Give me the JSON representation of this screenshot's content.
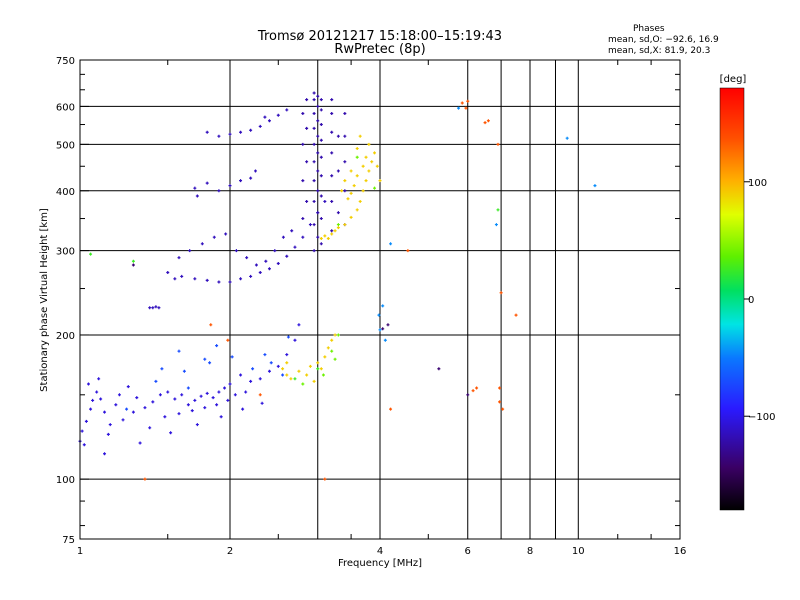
{
  "chart_data": {
    "type": "scatter",
    "title": "Tromsø 20121217 15:18:00–15:19:43",
    "subtitle": "RwPretec (8p)",
    "stats": {
      "heading": "Phases",
      "line_o": "mean, sd,O: −92.6, 16.9",
      "line_x": "mean, sd,X:  81.9, 20.3"
    },
    "xlabel": "Frequency [MHz]",
    "ylabel": "Stationary phase Virtual Height [km]",
    "x_scale": "log",
    "y_scale": "log",
    "xlim": [
      1,
      16
    ],
    "ylim": [
      75,
      750
    ],
    "x_ticks": [
      {
        "value": 1,
        "label": "1"
      },
      {
        "value": 2,
        "label": "2"
      },
      {
        "value": 4,
        "label": "4"
      },
      {
        "value": 6,
        "label": "6"
      },
      {
        "value": 8,
        "label": "8"
      },
      {
        "value": 10,
        "label": "10"
      },
      {
        "value": 16,
        "label": "16"
      }
    ],
    "y_ticks": [
      {
        "value": 75,
        "label": "75"
      },
      {
        "value": 100,
        "label": "100"
      },
      {
        "value": 200,
        "label": "200"
      },
      {
        "value": 300,
        "label": "300"
      },
      {
        "value": 400,
        "label": "400"
      },
      {
        "value": 500,
        "label": "500"
      },
      {
        "value": 600,
        "label": "600"
      },
      {
        "value": 750,
        "label": "750"
      }
    ],
    "grid": true,
    "grid_x": [
      2,
      3,
      4,
      6,
      7,
      8,
      9,
      10
    ],
    "grid_y": [
      100,
      200,
      300,
      400,
      500,
      600
    ],
    "colorbar": {
      "label": "[deg]",
      "range": [
        -180,
        180
      ],
      "ticks": [
        {
          "value": 100,
          "label": "100"
        },
        {
          "value": 0,
          "label": "0"
        },
        {
          "value": -100,
          "label": "−100"
        }
      ]
    },
    "series": [
      {
        "name": "",
        "phase": -105,
        "points": [
          [
            1.0,
            120
          ],
          [
            1.01,
            126
          ],
          [
            1.02,
            118
          ],
          [
            1.03,
            132
          ],
          [
            1.05,
            140
          ],
          [
            1.06,
            146
          ],
          [
            1.08,
            152
          ],
          [
            1.1,
            147
          ],
          [
            1.12,
            138
          ],
          [
            1.15,
            130
          ],
          [
            1.18,
            143
          ],
          [
            1.2,
            150
          ],
          [
            1.25,
            156
          ],
          [
            1.3,
            148
          ],
          [
            1.35,
            141
          ],
          [
            1.4,
            145
          ],
          [
            1.45,
            150
          ],
          [
            1.5,
            152
          ],
          [
            1.55,
            147
          ],
          [
            1.6,
            150
          ],
          [
            1.65,
            143
          ],
          [
            1.7,
            146
          ],
          [
            1.75,
            149
          ],
          [
            1.8,
            151
          ],
          [
            1.85,
            148
          ],
          [
            1.9,
            152
          ],
          [
            1.95,
            155
          ],
          [
            2.0,
            158
          ],
          [
            2.1,
            165
          ],
          [
            2.2,
            160
          ],
          [
            2.3,
            162
          ],
          [
            2.4,
            168
          ],
          [
            2.5,
            172
          ],
          [
            2.6,
            182
          ],
          [
            2.7,
            195
          ],
          [
            2.75,
            210
          ],
          [
            1.04,
            158
          ],
          [
            1.09,
            162
          ],
          [
            1.14,
            124
          ],
          [
            1.22,
            133
          ],
          [
            1.28,
            138
          ],
          [
            1.38,
            128
          ],
          [
            1.48,
            135
          ],
          [
            1.58,
            137
          ],
          [
            1.68,
            139
          ],
          [
            1.78,
            141
          ],
          [
            1.88,
            143
          ],
          [
            1.98,
            146
          ],
          [
            2.05,
            150
          ],
          [
            2.15,
            152
          ],
          [
            1.12,
            113
          ],
          [
            1.32,
            119
          ],
          [
            1.52,
            125
          ],
          [
            1.72,
            130
          ],
          [
            1.92,
            135
          ],
          [
            2.12,
            140
          ],
          [
            2.32,
            144
          ]
        ]
      },
      {
        "name": "",
        "phase": -70,
        "points": [
          [
            1.42,
            160
          ],
          [
            1.62,
            168
          ],
          [
            1.82,
            175
          ],
          [
            2.02,
            180
          ],
          [
            2.22,
            170
          ],
          [
            2.42,
            175
          ],
          [
            1.58,
            185
          ],
          [
            1.78,
            178
          ],
          [
            2.35,
            182
          ],
          [
            1.65,
            155
          ],
          [
            2.55,
            165
          ],
          [
            1.88,
            190
          ],
          [
            2.62,
            198
          ],
          [
            1.24,
            140
          ],
          [
            1.46,
            170
          ]
        ]
      },
      {
        "name": "",
        "phase": -115,
        "points": [
          [
            1.55,
            262
          ],
          [
            1.6,
            265
          ],
          [
            1.7,
            262
          ],
          [
            1.8,
            260
          ],
          [
            1.9,
            258
          ],
          [
            2.0,
            258
          ],
          [
            2.1,
            262
          ],
          [
            2.2,
            265
          ],
          [
            2.3,
            270
          ],
          [
            2.4,
            275
          ],
          [
            2.5,
            282
          ],
          [
            2.6,
            292
          ],
          [
            2.7,
            305
          ],
          [
            2.8,
            320
          ],
          [
            2.9,
            340
          ],
          [
            3.0,
            360
          ],
          [
            3.1,
            380
          ],
          [
            1.5,
            270
          ],
          [
            1.58,
            290
          ],
          [
            1.66,
            300
          ],
          [
            1.76,
            310
          ],
          [
            1.86,
            320
          ],
          [
            1.96,
            325
          ],
          [
            2.06,
            300
          ],
          [
            2.16,
            290
          ],
          [
            2.26,
            280
          ],
          [
            2.36,
            285
          ],
          [
            2.46,
            300
          ],
          [
            2.56,
            320
          ],
          [
            2.66,
            330
          ],
          [
            1.9,
            400
          ],
          [
            2.0,
            410
          ],
          [
            2.1,
            420
          ],
          [
            2.2,
            425
          ],
          [
            1.8,
            415
          ],
          [
            1.7,
            405
          ],
          [
            2.25,
            440
          ],
          [
            1.72,
            390
          ],
          [
            1.9,
            520
          ],
          [
            2.0,
            525
          ],
          [
            2.1,
            530
          ],
          [
            2.2,
            535
          ],
          [
            2.3,
            545
          ],
          [
            2.4,
            560
          ],
          [
            2.5,
            575
          ],
          [
            2.6,
            590
          ],
          [
            1.8,
            530
          ],
          [
            2.35,
            570
          ],
          [
            1.38,
            228
          ],
          [
            1.4,
            228
          ],
          [
            1.42,
            229
          ],
          [
            1.44,
            228
          ]
        ]
      },
      {
        "name": "",
        "phase": -120,
        "points": [
          [
            2.95,
            300
          ],
          [
            2.95,
            340
          ],
          [
            2.95,
            380
          ],
          [
            2.95,
            420
          ],
          [
            2.95,
            460
          ],
          [
            2.95,
            500
          ],
          [
            2.95,
            540
          ],
          [
            2.95,
            580
          ],
          [
            2.95,
            620
          ],
          [
            2.95,
            640
          ],
          [
            3.0,
            320
          ],
          [
            3.0,
            360
          ],
          [
            3.0,
            400
          ],
          [
            3.0,
            440
          ],
          [
            3.0,
            480
          ],
          [
            3.0,
            520
          ],
          [
            3.0,
            560
          ],
          [
            3.0,
            600
          ],
          [
            3.0,
            630
          ],
          [
            3.05,
            310
          ],
          [
            3.05,
            350
          ],
          [
            3.05,
            390
          ],
          [
            3.05,
            430
          ],
          [
            3.05,
            470
          ],
          [
            3.05,
            510
          ],
          [
            3.05,
            550
          ],
          [
            3.05,
            590
          ],
          [
            3.05,
            620
          ],
          [
            2.8,
            350
          ],
          [
            2.8,
            420
          ],
          [
            2.8,
            500
          ],
          [
            2.8,
            580
          ],
          [
            2.85,
            380
          ],
          [
            2.85,
            460
          ],
          [
            2.85,
            540
          ],
          [
            2.85,
            620
          ],
          [
            3.2,
            330
          ],
          [
            3.2,
            380
          ],
          [
            3.2,
            430
          ],
          [
            3.2,
            480
          ],
          [
            3.2,
            530
          ],
          [
            3.2,
            580
          ],
          [
            3.2,
            620
          ],
          [
            3.4,
            340
          ],
          [
            3.4,
            400
          ],
          [
            3.4,
            460
          ],
          [
            3.4,
            520
          ],
          [
            3.4,
            580
          ],
          [
            3.3,
            360
          ],
          [
            3.3,
            440
          ],
          [
            3.3,
            520
          ]
        ]
      },
      {
        "name": "",
        "phase": 90,
        "points": [
          [
            3.05,
            318
          ],
          [
            3.1,
            322
          ],
          [
            3.15,
            318
          ],
          [
            3.2,
            325
          ],
          [
            3.25,
            330
          ],
          [
            3.3,
            335
          ],
          [
            3.4,
            340
          ],
          [
            3.5,
            352
          ],
          [
            3.6,
            365
          ],
          [
            3.65,
            380
          ],
          [
            3.7,
            400
          ],
          [
            3.75,
            420
          ],
          [
            3.8,
            440
          ],
          [
            3.85,
            460
          ],
          [
            3.9,
            480
          ],
          [
            3.6,
            430
          ],
          [
            3.55,
            410
          ],
          [
            3.5,
            395
          ],
          [
            3.45,
            385
          ],
          [
            3.7,
            450
          ],
          [
            3.75,
            470
          ],
          [
            3.8,
            500
          ],
          [
            3.65,
            520
          ],
          [
            3.95,
            450
          ],
          [
            4.0,
            420
          ],
          [
            3.35,
            400
          ],
          [
            3.4,
            420
          ],
          [
            3.5,
            440
          ],
          [
            3.6,
            490
          ],
          [
            2.55,
            170
          ],
          [
            2.6,
            165
          ],
          [
            2.65,
            162
          ],
          [
            2.75,
            168
          ],
          [
            2.85,
            165
          ],
          [
            2.9,
            172
          ],
          [
            3.0,
            175
          ],
          [
            3.1,
            180
          ],
          [
            3.15,
            188
          ],
          [
            3.2,
            195
          ],
          [
            3.25,
            200
          ],
          [
            3.05,
            170
          ],
          [
            2.95,
            160
          ],
          [
            2.6,
            175
          ]
        ]
      },
      {
        "name": "",
        "phase": 40,
        "points": [
          [
            3.2,
            185
          ],
          [
            3.3,
            200
          ],
          [
            2.8,
            158
          ],
          [
            3.08,
            165
          ],
          [
            3.25,
            178
          ],
          [
            3.6,
            470
          ],
          [
            3.9,
            405
          ],
          [
            3.3,
            340
          ]
        ]
      },
      {
        "name": "",
        "phase": 135,
        "points": [
          [
            5.85,
            610
          ],
          [
            6.0,
            615
          ],
          [
            5.95,
            595
          ],
          [
            6.9,
            500
          ],
          [
            6.5,
            555
          ],
          [
            6.6,
            560
          ],
          [
            7.0,
            245
          ],
          [
            7.5,
            220
          ],
          [
            6.95,
            155
          ],
          [
            6.15,
            153
          ],
          [
            6.25,
            155
          ],
          [
            6.95,
            145
          ],
          [
            7.05,
            140
          ],
          [
            4.55,
            300
          ],
          [
            4.2,
            140
          ],
          [
            3.1,
            100
          ],
          [
            1.35,
            100
          ],
          [
            1.83,
            210
          ],
          [
            1.98,
            195
          ],
          [
            2.3,
            150
          ]
        ]
      },
      {
        "name": "",
        "phase": -45,
        "points": [
          [
            9.5,
            515
          ],
          [
            10.8,
            410
          ],
          [
            5.75,
            595
          ],
          [
            6.85,
            340
          ],
          [
            4.1,
            195
          ],
          [
            4.0,
            205
          ],
          [
            4.05,
            230
          ],
          [
            4.2,
            310
          ],
          [
            3.98,
            220
          ]
        ]
      },
      {
        "name": "",
        "phase": -140,
        "points": [
          [
            4.15,
            210
          ],
          [
            4.05,
            206
          ],
          [
            5.25,
            170
          ],
          [
            6.0,
            150
          ],
          [
            1.28,
            280
          ]
        ]
      },
      {
        "name": "",
        "phase": 25,
        "points": [
          [
            3.0,
            170
          ],
          [
            2.7,
            162
          ],
          [
            6.9,
            365
          ],
          [
            1.28,
            285
          ],
          [
            1.05,
            295
          ]
        ]
      }
    ]
  }
}
